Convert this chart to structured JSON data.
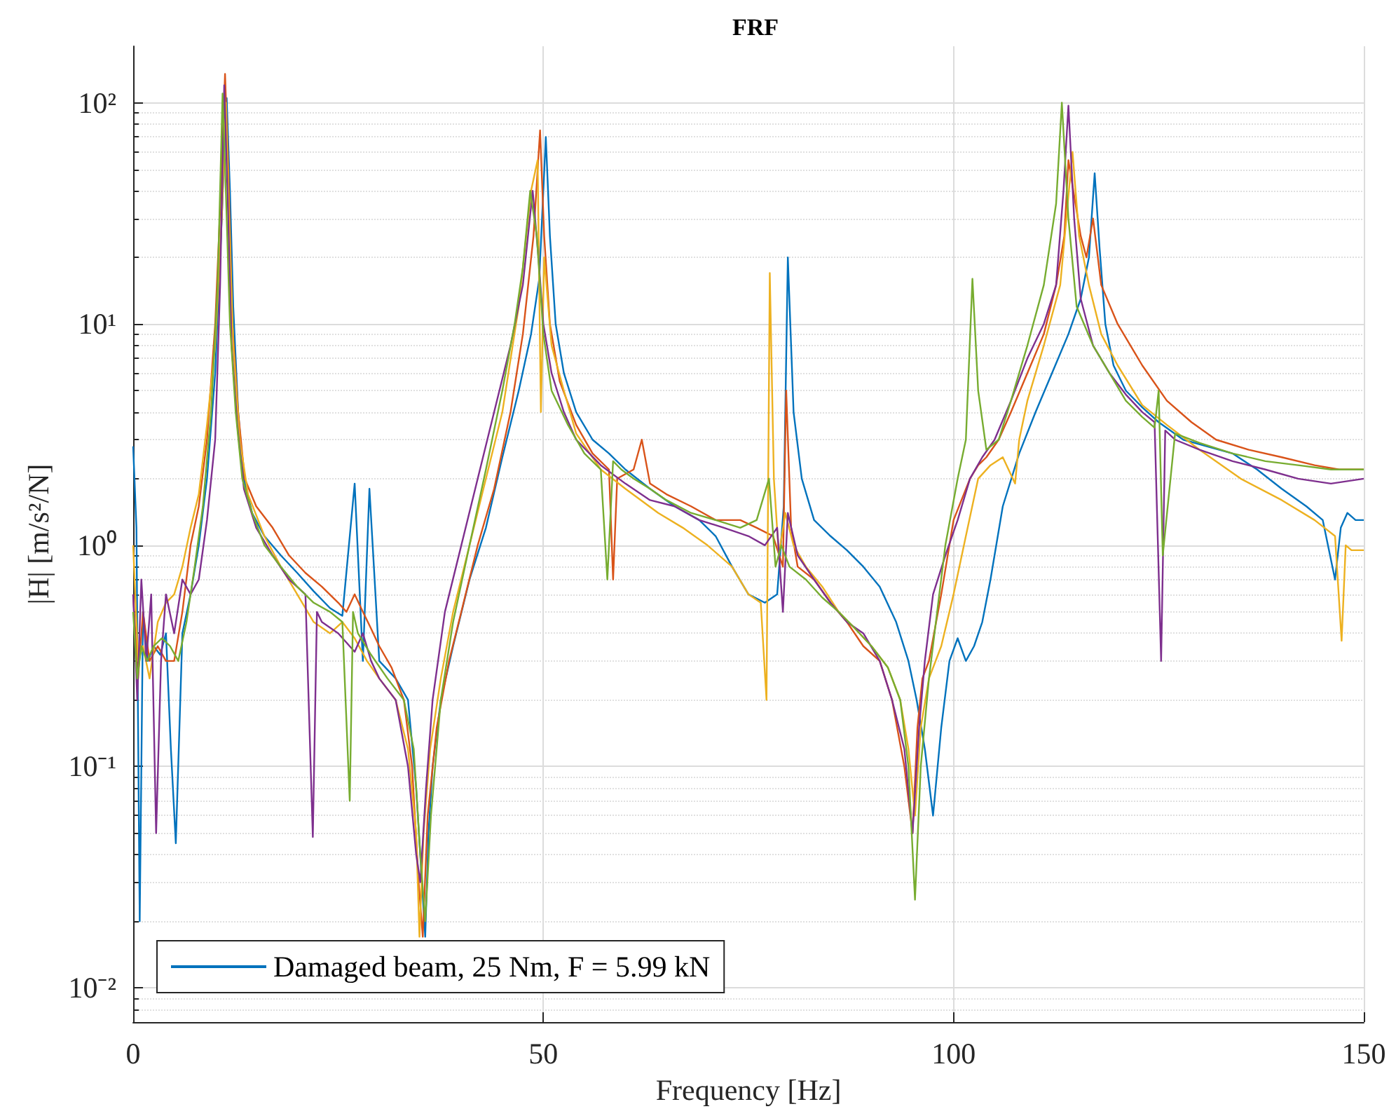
{
  "chart_data": {
    "type": "line",
    "title": "FRF",
    "xlabel": "Frequency [Hz]",
    "ylabel": "|H| [m/s²/N]",
    "log": "y",
    "grid": true,
    "legend": "bottom left",
    "marker": "none",
    "line_style": "solid",
    "xlim": [
      0,
      150
    ],
    "xticks": [
      0,
      50,
      100,
      150
    ],
    "ylim": [
      0.007,
      180
    ],
    "yticks": [
      {
        "value": 0.01,
        "label": "10⁻²"
      },
      {
        "value": 0.1,
        "label": "10⁻¹"
      },
      {
        "value": 1,
        "label": "10⁰"
      },
      {
        "value": 10,
        "label": "10¹"
      },
      {
        "value": 100,
        "label": "10²"
      }
    ],
    "series": [
      {
        "name": "Damaged beam, 25 Nm, F = 5.99 kN",
        "color": "#0072bd",
        "x": [
          0,
          0.4,
          0.8,
          1.2,
          1.8,
          2.5,
          3.3,
          4,
          4.6,
          5.2,
          6,
          7,
          8,
          9,
          10,
          10.8,
          11.4,
          11.8,
          12.2,
          12.8,
          13.5,
          14.5,
          16,
          18,
          20,
          22,
          24,
          25.5,
          27,
          28,
          28.8,
          30,
          32,
          33.5,
          34.5,
          35.6,
          36,
          36.5,
          37.5,
          39,
          41,
          43,
          45,
          47,
          48.5,
          49.5,
          50.3,
          50.8,
          51.5,
          52.5,
          54,
          56,
          58,
          60,
          63,
          66,
          69,
          71,
          73,
          75,
          77,
          78.5,
          79.3,
          79.8,
          80.5,
          81.5,
          83,
          85,
          87,
          89,
          91,
          93,
          94.5,
          95.5,
          96.5,
          97.5,
          98.5,
          99.5,
          100.5,
          101.5,
          102.5,
          103.5,
          104.5,
          106,
          108,
          110,
          112,
          114,
          115.5,
          116.5,
          117.2,
          117.8,
          118.5,
          119.5,
          121,
          123,
          125,
          128,
          134,
          137,
          140,
          143,
          145,
          146.5,
          147.2,
          148,
          149,
          150
        ],
        "values": [
          2.8,
          1.2,
          0.02,
          0.5,
          0.3,
          0.35,
          0.32,
          0.4,
          0.12,
          0.045,
          0.4,
          0.6,
          1,
          2,
          6,
          30,
          105,
          40,
          12,
          4,
          2,
          1.4,
          1.1,
          0.9,
          0.75,
          0.62,
          0.52,
          0.48,
          1.9,
          0.3,
          1.8,
          0.3,
          0.25,
          0.2,
          0.08,
          0.017,
          0.05,
          0.1,
          0.2,
          0.35,
          0.7,
          1.2,
          2.5,
          5,
          9,
          16,
          70,
          25,
          10,
          6,
          4,
          3,
          2.6,
          2.2,
          1.8,
          1.5,
          1.3,
          1.1,
          0.8,
          0.6,
          0.55,
          0.6,
          1.5,
          20,
          4,
          2,
          1.3,
          1.1,
          0.95,
          0.8,
          0.65,
          0.45,
          0.3,
          0.2,
          0.12,
          0.06,
          0.15,
          0.3,
          0.38,
          0.3,
          0.35,
          0.45,
          0.7,
          1.5,
          2.6,
          4,
          6,
          9,
          13,
          20,
          48,
          22,
          10,
          6.5,
          5,
          4.2,
          3.6,
          3,
          2.6,
          2.2,
          1.8,
          1.5,
          1.3,
          0.7,
          1.2,
          1.4,
          1.3,
          1.3
        ]
      },
      {
        "color": "#d95319",
        "x": [
          0,
          0.6,
          1.2,
          2,
          3,
          4,
          5,
          6,
          7,
          8,
          9,
          10,
          10.7,
          11.2,
          11.6,
          12.1,
          12.8,
          13.6,
          15,
          17,
          19,
          21,
          23,
          25,
          26,
          27,
          28,
          29,
          30,
          31.5,
          33,
          34,
          34.8,
          35.3,
          35.9,
          37,
          38.5,
          40,
          42,
          44,
          46,
          47.5,
          48.8,
          49.6,
          50.1,
          50.8,
          52,
          54,
          56,
          58,
          58.5,
          59,
          61,
          62,
          63,
          65,
          68,
          71,
          74,
          76,
          78,
          79.2,
          79.6,
          80.2,
          81,
          83,
          85,
          87,
          89,
          91,
          92.5,
          94,
          95,
          95.6,
          96.2,
          97,
          98.5,
          100,
          102,
          103,
          104,
          105.5,
          107,
          109,
          111,
          112.5,
          113.5,
          114,
          114.6,
          115.5,
          116.2,
          117,
          118,
          120,
          123,
          126,
          129,
          132,
          136,
          140,
          144,
          147,
          150
        ],
        "values": [
          0.6,
          0.25,
          0.5,
          0.3,
          0.35,
          0.3,
          0.3,
          0.5,
          1,
          1.5,
          3,
          10,
          40,
          135,
          50,
          10,
          4,
          2,
          1.5,
          1.2,
          0.9,
          0.75,
          0.65,
          0.55,
          0.5,
          0.6,
          0.5,
          0.42,
          0.35,
          0.28,
          0.2,
          0.1,
          0.03,
          0.017,
          0.06,
          0.15,
          0.3,
          0.5,
          1,
          1.8,
          4,
          9,
          25,
          75,
          25,
          10,
          5.5,
          3.5,
          2.6,
          2.2,
          0.7,
          2,
          2.2,
          3,
          1.9,
          1.7,
          1.5,
          1.3,
          1.3,
          1.2,
          1.1,
          0.8,
          5,
          1.2,
          0.8,
          0.7,
          0.55,
          0.45,
          0.35,
          0.3,
          0.2,
          0.1,
          0.05,
          0.15,
          0.25,
          0.3,
          0.6,
          1.3,
          2,
          2.3,
          2.5,
          3,
          4,
          6,
          9,
          15,
          25,
          55,
          40,
          25,
          20,
          30,
          15,
          10,
          6.5,
          4.5,
          3.6,
          3,
          2.7,
          2.5,
          2.3,
          2.2,
          2.2
        ]
      },
      {
        "color": "#edb120",
        "x": [
          0,
          0.6,
          1.2,
          2,
          3,
          4,
          5,
          6,
          7,
          8,
          9,
          10,
          10.8,
          11.3,
          11.7,
          12.2,
          13,
          14,
          16,
          18,
          20,
          22,
          24,
          25.5,
          27,
          28.5,
          30,
          32,
          33.5,
          34.5,
          34.9,
          35.4,
          36.2,
          37.5,
          39,
          41,
          43,
          45,
          47,
          48.5,
          49.3,
          49.7,
          50.1,
          51,
          52.5,
          54,
          57,
          60,
          64,
          67,
          70,
          73,
          75,
          76.5,
          77.2,
          77.6,
          78.1,
          78.7,
          79.5,
          80.5,
          82,
          84,
          86,
          88,
          90,
          92,
          93.5,
          94.5,
          95.3,
          96,
          97,
          98.5,
          100,
          101.5,
          103,
          104.5,
          106,
          107.5,
          108,
          109,
          111,
          113,
          114.5,
          115.3,
          116.5,
          118,
          120,
          123,
          126,
          130,
          135,
          140,
          144,
          146.5,
          147.3,
          147.8,
          148.5,
          150
        ],
        "values": [
          1,
          0.3,
          0.35,
          0.25,
          0.45,
          0.55,
          0.6,
          0.8,
          1.2,
          1.7,
          3.5,
          8,
          30,
          100,
          30,
          8,
          3,
          1.7,
          1.1,
          0.8,
          0.6,
          0.45,
          0.4,
          0.45,
          0.38,
          0.3,
          0.25,
          0.2,
          0.12,
          0.05,
          0.017,
          0.05,
          0.12,
          0.25,
          0.5,
          1,
          2,
          4,
          12,
          40,
          55,
          4,
          20,
          8,
          5,
          3.2,
          2.2,
          1.8,
          1.4,
          1.2,
          1,
          0.8,
          0.6,
          0.55,
          0.2,
          17,
          2,
          0.9,
          1.4,
          1,
          0.8,
          0.65,
          0.5,
          0.42,
          0.35,
          0.28,
          0.2,
          0.12,
          0.06,
          0.15,
          0.25,
          0.35,
          0.6,
          1.1,
          2,
          2.3,
          2.5,
          1.9,
          3,
          4.5,
          8,
          15,
          60,
          25,
          15,
          9,
          6.5,
          4.3,
          3.5,
          2.7,
          2,
          1.6,
          1.3,
          1.1,
          0.37,
          1,
          0.95,
          0.95
        ]
      },
      {
        "color": "#7e2f8e",
        "x": [
          0,
          0.5,
          1,
          1.6,
          2.2,
          2.8,
          3.4,
          4,
          5,
          6,
          7,
          8,
          9,
          10,
          10.6,
          11.1,
          11.5,
          12,
          12.7,
          13.5,
          15,
          17,
          19,
          21,
          21.9,
          22.4,
          23,
          25,
          27,
          28,
          29,
          30,
          32,
          33.5,
          34.5,
          35,
          35.7,
          36.5,
          38,
          40,
          42,
          44,
          46,
          47.5,
          48.7,
          49.4,
          50,
          51,
          52.5,
          54,
          57,
          60,
          63,
          66,
          69,
          72,
          75,
          77,
          78.5,
          79.2,
          79.8,
          81,
          83,
          85,
          87,
          89,
          91,
          92.5,
          94,
          95,
          95.8,
          96.5,
          97.5,
          99,
          100.5,
          102,
          103.5,
          105,
          107,
          109,
          111,
          112.5,
          113.4,
          114,
          114.7,
          115.5,
          117,
          119,
          121,
          123,
          124.5,
          125.3,
          125.8,
          127,
          130,
          134,
          138,
          142,
          146,
          150
        ],
        "values": [
          0.6,
          0.2,
          0.7,
          0.3,
          0.6,
          0.05,
          0.3,
          0.6,
          0.4,
          0.7,
          0.6,
          0.7,
          1.3,
          3,
          15,
          120,
          40,
          8,
          3.5,
          1.8,
          1.2,
          0.9,
          0.7,
          0.6,
          0.048,
          0.5,
          0.45,
          0.4,
          0.33,
          0.4,
          0.3,
          0.25,
          0.2,
          0.1,
          0.04,
          0.03,
          0.08,
          0.2,
          0.5,
          1,
          2,
          4,
          8,
          15,
          40,
          20,
          10,
          6,
          4,
          3,
          2.3,
          1.9,
          1.6,
          1.5,
          1.3,
          1.2,
          1.1,
          1,
          1.2,
          0.5,
          1.4,
          0.9,
          0.7,
          0.55,
          0.45,
          0.4,
          0.3,
          0.2,
          0.12,
          0.05,
          0.15,
          0.3,
          0.6,
          0.9,
          1.3,
          2,
          2.5,
          3,
          4.5,
          7,
          10,
          15,
          40,
          97,
          30,
          13,
          8,
          6,
          4.8,
          4,
          3.6,
          0.3,
          3.3,
          3,
          2.7,
          2.4,
          2.2,
          2,
          1.9,
          2
        ]
      },
      {
        "color": "#77ac30",
        "x": [
          0,
          0.5,
          1,
          1.7,
          2.5,
          3.5,
          4.5,
          5.5,
          6.5,
          7.5,
          8.5,
          9.5,
          10.3,
          10.9,
          11.3,
          11.8,
          12.5,
          13.3,
          14.5,
          16,
          18,
          20,
          22,
          24,
          25.5,
          26.4,
          26.8,
          27.4,
          29,
          31,
          33,
          34.2,
          35,
          35.6,
          36.3,
          37.5,
          39,
          41,
          43,
          45,
          46.5,
          47.5,
          48.4,
          49.2,
          50,
          51,
          53,
          55,
          57,
          57.8,
          58.5,
          59.5,
          61,
          63,
          65,
          68,
          71,
          74,
          76,
          77.5,
          78.3,
          79,
          80,
          82,
          84,
          86,
          88,
          90,
          92,
          93.5,
          94.5,
          95.3,
          96,
          97,
          98,
          99,
          100.5,
          101.5,
          102.3,
          103,
          104,
          105.5,
          107,
          109,
          111,
          112.5,
          113.2,
          114,
          115,
          117,
          119,
          121,
          123,
          124.5,
          125,
          125.5,
          127,
          130,
          134,
          138,
          142,
          146,
          150
        ],
        "values": [
          0.5,
          0.25,
          0.35,
          0.3,
          0.35,
          0.38,
          0.35,
          0.3,
          0.45,
          0.8,
          1.5,
          4,
          15,
          110,
          40,
          10,
          4,
          2,
          1.4,
          1,
          0.8,
          0.65,
          0.55,
          0.5,
          0.45,
          0.07,
          0.5,
          0.4,
          0.32,
          0.25,
          0.2,
          0.12,
          0.04,
          0.02,
          0.06,
          0.2,
          0.45,
          1,
          2.2,
          5,
          10,
          18,
          40,
          25,
          9,
          5,
          3.5,
          2.6,
          2.2,
          0.7,
          2.4,
          2.2,
          2,
          1.8,
          1.6,
          1.4,
          1.3,
          1.2,
          1.3,
          2,
          0.8,
          1,
          0.8,
          0.7,
          0.58,
          0.5,
          0.42,
          0.35,
          0.28,
          0.2,
          0.1,
          0.025,
          0.1,
          0.25,
          0.5,
          1,
          2,
          3,
          16,
          5,
          2.7,
          3,
          4.5,
          8,
          15,
          35,
          100,
          30,
          12,
          8,
          6,
          4.5,
          3.8,
          3.4,
          5,
          0.9,
          3.2,
          2.9,
          2.6,
          2.4,
          2.3,
          2.2,
          2.2
        ]
      }
    ]
  }
}
